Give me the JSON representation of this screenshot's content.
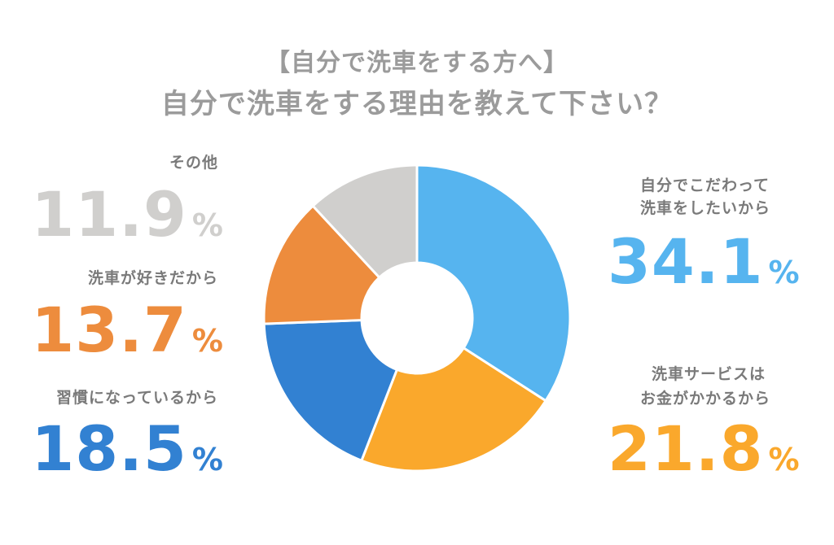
{
  "title": {
    "line1": "【自分で洗車をする方へ】",
    "line2": "自分で洗車をする理由を教えて下さい？"
  },
  "chart_data": {
    "type": "pie",
    "donut": true,
    "series": [
      {
        "name": "自分でこだわって\n洗車をしたいから",
        "value": 34.1,
        "color": "#56b4ef"
      },
      {
        "name": "洗車サービスは\nお金がかかるから",
        "value": 21.8,
        "color": "#faa82c"
      },
      {
        "name": "習慣になっているから",
        "value": 18.5,
        "color": "#3281d2"
      },
      {
        "name": "洗車が好きだから",
        "value": 13.7,
        "color": "#ed8c3d"
      },
      {
        "name": "その他",
        "value": 11.9,
        "color": "#d0cfcd"
      }
    ],
    "labels": {
      "s0_line1": "自分でこだわって",
      "s0_line2": "洗車をしたいから",
      "s0_value": "34.1",
      "s1_line1": "洗車サービスは",
      "s1_line2": "お金がかかるから",
      "s1_value": "21.8",
      "s2_line1": "習慣になっているから",
      "s2_value": "18.5",
      "s3_line1": "洗車が好きだから",
      "s3_value": "13.7",
      "s4_line1": "その他",
      "s4_value": "11.9",
      "percent_sign": "%"
    }
  }
}
